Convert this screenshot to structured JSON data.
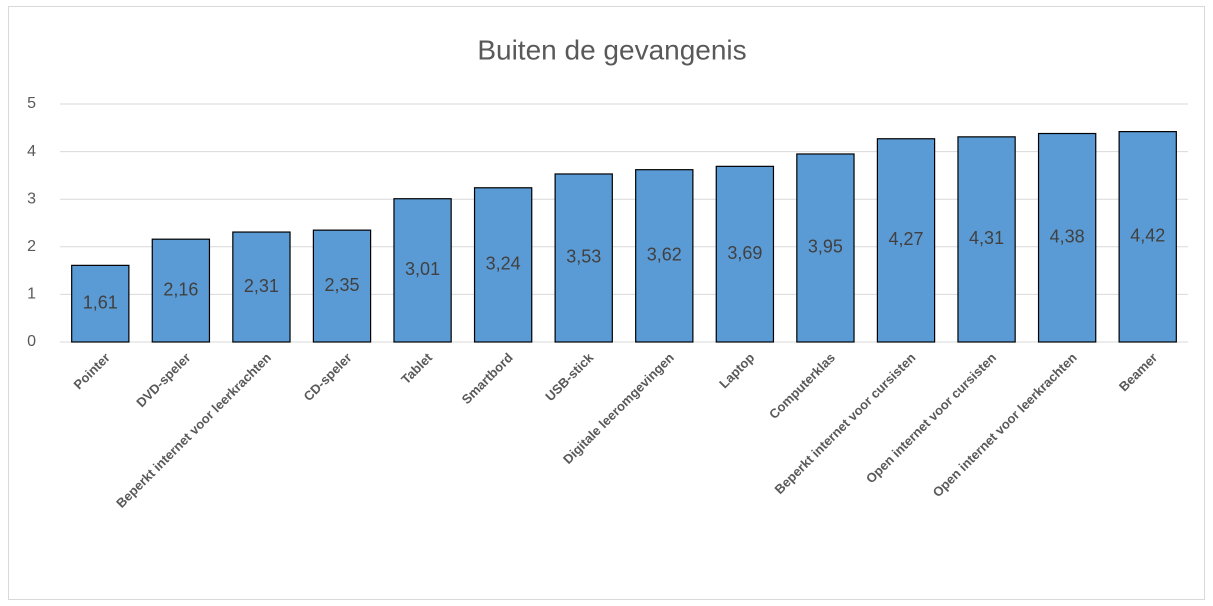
{
  "chart_data": {
    "type": "bar",
    "title": "Buiten de gevangenis",
    "categories": [
      "Pointer",
      "DVD-speler",
      "Beperkt internet voor leerkrachten",
      "CD-speler",
      "Tablet",
      "Smartbord",
      "USB-stick",
      "Digitale leeromgevingen",
      "Laptop",
      "Computerklas",
      "Beperkt internet voor cursisten",
      "Open internet voor cursisten",
      "Open internet voor leerkrachten",
      "Beamer"
    ],
    "values": [
      1.61,
      2.16,
      2.31,
      2.35,
      3.01,
      3.24,
      3.53,
      3.62,
      3.69,
      3.95,
      4.27,
      4.31,
      4.38,
      4.42
    ],
    "value_labels": [
      "1,61",
      "2,16",
      "2,31",
      "2,35",
      "3,01",
      "3,24",
      "3,53",
      "3,62",
      "3,69",
      "3,95",
      "4,27",
      "4,31",
      "4,38",
      "4,42"
    ],
    "color": "#5b9bd5",
    "ylim": [
      0,
      5
    ],
    "yticks": [
      0,
      1,
      2,
      3,
      4,
      5
    ],
    "grid": true
  }
}
